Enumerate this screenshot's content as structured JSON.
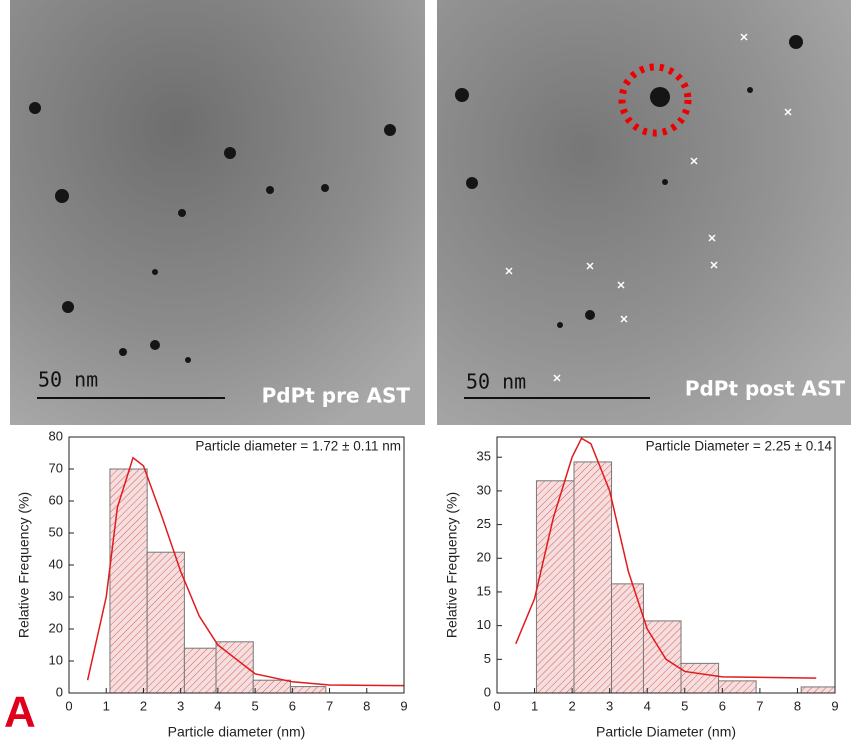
{
  "images": [
    {
      "scale_label": "50 nm",
      "label": "PdPt pre AST"
    },
    {
      "scale_label": "50 nm",
      "label": "PdPt post AST"
    }
  ],
  "panel_label": "A",
  "chart_data": [
    {
      "type": "histogram",
      "annotation": "Particle diameter = 1.72 ± 0.11 nm",
      "xlabel": "Particle diameter (nm)",
      "ylabel": "Relative Frequency (%)",
      "bins": [
        1.1,
        2.1,
        3.1,
        3.95,
        4.95,
        5.95,
        6.9
      ],
      "values": [
        70,
        44,
        14,
        16,
        4,
        2
      ],
      "color": "#c0392b",
      "fit": {
        "x": [
          0.5,
          1.0,
          1.3,
          1.72,
          2.0,
          2.5,
          3.0,
          3.5,
          4.0,
          5.0,
          6.0,
          7.0,
          9.0
        ],
        "values": [
          4,
          30,
          58,
          73.5,
          71,
          55,
          38,
          24,
          15,
          6,
          3.5,
          2.5,
          2.3
        ],
        "color": "#e31a1c"
      },
      "xlim": [
        0,
        9
      ],
      "xticks": [
        0,
        1,
        2,
        3,
        4,
        5,
        6,
        7,
        8,
        9
      ],
      "ylim": [
        0,
        80
      ],
      "yticks": [
        0,
        10,
        20,
        30,
        40,
        50,
        60,
        70,
        80
      ]
    },
    {
      "type": "histogram",
      "annotation": "Particle Diameter = 2.25 ± 0.14",
      "xlabel": "Particle Diameter (nm)",
      "ylabel": "Relative Frequency (%)",
      "bins": [
        1.05,
        2.05,
        3.05,
        3.9,
        4.9,
        5.9,
        6.9,
        8.1,
        9.0
      ],
      "values": [
        31.5,
        34.3,
        16.2,
        10.7,
        4.4,
        1.8,
        0,
        0.9
      ],
      "color": "#c0392b",
      "fit": {
        "x": [
          0.5,
          1.0,
          1.5,
          2.0,
          2.25,
          2.5,
          3.0,
          3.5,
          4.0,
          4.5,
          5.0,
          6.0,
          8.5
        ],
        "values": [
          7.3,
          14,
          26,
          35,
          37.8,
          37,
          30,
          18,
          9.5,
          5,
          3.2,
          2.4,
          2.2
        ],
        "color": "#e31a1c"
      },
      "xlim": [
        0,
        9
      ],
      "xticks": [
        0,
        1,
        2,
        3,
        4,
        5,
        6,
        7,
        8,
        9
      ],
      "ylim": [
        0,
        38
      ],
      "yticks": [
        0,
        5,
        10,
        15,
        20,
        25,
        30,
        35
      ]
    }
  ]
}
